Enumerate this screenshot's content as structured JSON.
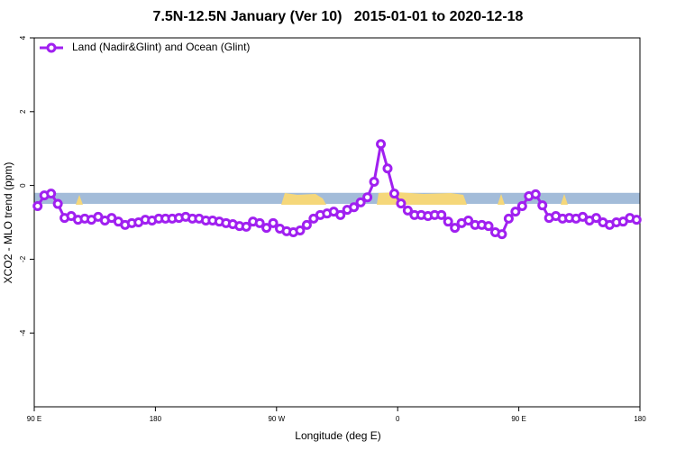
{
  "chart_data": {
    "type": "line",
    "title": "7.5N-12.5N January (Ver 10)   2015-01-01 to 2020-12-18",
    "xlabel": "Longitude (deg E)",
    "ylabel": "XCO2 - MLO trend (ppm)",
    "xlim": [
      90,
      540
    ],
    "ylim": [
      -6,
      4
    ],
    "xticks": [
      {
        "value": 90,
        "label": "90 E"
      },
      180,
      {
        "value": 270,
        "label": "90 W"
      },
      {
        "value": 360,
        "label": "0"
      },
      {
        "value": 450,
        "label": "90 E"
      },
      {
        "value": 540,
        "label": "180"
      }
    ],
    "yticks": [
      4,
      2,
      0,
      -2,
      -4
    ],
    "band": {
      "range": [
        -0.2,
        -0.5
      ],
      "color": "#a3bcd9"
    },
    "legend": "top-left",
    "x": [
      92.5,
      97.5,
      102.5,
      107.5,
      112.5,
      117.5,
      122.5,
      127.5,
      132.5,
      137.5,
      142.5,
      147.5,
      152.5,
      157.5,
      162.5,
      167.5,
      172.5,
      177.5,
      182.5,
      187.5,
      192.5,
      197.5,
      202.5,
      207.5,
      212.5,
      217.5,
      222.5,
      227.5,
      232.5,
      237.5,
      242.5,
      247.5,
      252.5,
      257.5,
      262.5,
      267.5,
      272.5,
      277.5,
      282.5,
      287.5,
      292.5,
      297.5,
      302.5,
      307.5,
      312.5,
      317.5,
      322.5,
      327.5,
      332.5,
      337.5,
      342.5,
      347.5,
      352.5,
      357.5,
      362.5,
      367.5,
      372.5,
      377.5,
      382.5,
      387.5,
      392.5,
      397.5,
      402.5,
      407.5,
      412.5,
      417.5,
      422.5,
      427.5,
      432.5,
      437.5,
      442.5,
      447.5,
      452.5,
      457.5,
      462.5,
      467.5,
      472.5,
      477.5,
      482.5,
      487.5,
      492.5,
      497.5,
      502.5,
      507.5,
      512.5,
      517.5,
      522.5,
      527.5,
      532.5,
      537.5
    ],
    "series": [
      {
        "name": "Land (Nadir&Glint) and Ocean (Glint)",
        "color": "#a020f0",
        "values": [
          -0.56,
          -0.27,
          -0.22,
          -0.5,
          -0.88,
          -0.83,
          -0.93,
          -0.9,
          -0.93,
          -0.85,
          -0.95,
          -0.88,
          -0.98,
          -1.07,
          -1.02,
          -1.0,
          -0.93,
          -0.95,
          -0.9,
          -0.9,
          -0.9,
          -0.88,
          -0.85,
          -0.9,
          -0.9,
          -0.95,
          -0.95,
          -0.98,
          -1.02,
          -1.05,
          -1.1,
          -1.12,
          -0.98,
          -1.02,
          -1.15,
          -1.02,
          -1.17,
          -1.24,
          -1.27,
          -1.22,
          -1.07,
          -0.9,
          -0.8,
          -0.76,
          -0.71,
          -0.8,
          -0.66,
          -0.59,
          -0.46,
          -0.32,
          0.1,
          1.12,
          0.46,
          -0.22,
          -0.49,
          -0.68,
          -0.8,
          -0.8,
          -0.83,
          -0.8,
          -0.8,
          -0.98,
          -1.15,
          -1.02,
          -0.95,
          -1.07,
          -1.07,
          -1.1,
          -1.27,
          -1.32,
          -0.9,
          -0.71,
          -0.56,
          -0.29,
          -0.24,
          -0.54,
          -0.88,
          -0.83,
          -0.9,
          -0.88,
          -0.9,
          -0.85,
          -0.95,
          -0.88,
          -1.0,
          -1.07,
          -1.0,
          -0.98,
          -0.88,
          -0.93
        ]
      }
    ]
  }
}
